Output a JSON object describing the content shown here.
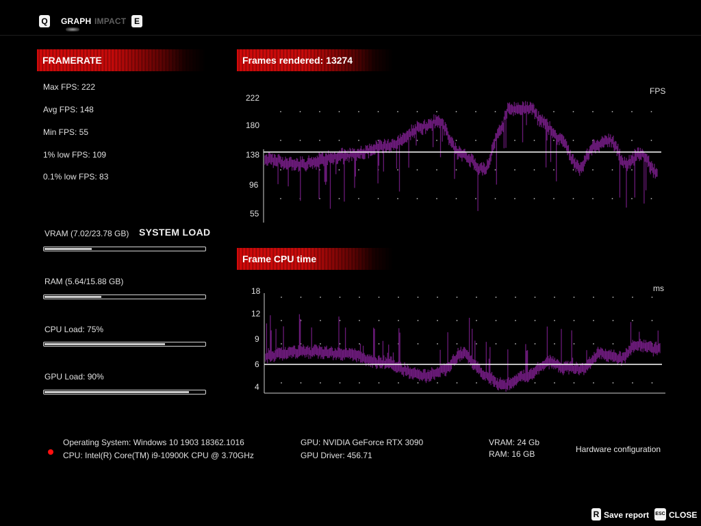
{
  "nav": {
    "key_left": "Q",
    "key_right": "E",
    "tabs": [
      {
        "label": "GRAPH",
        "active": true
      },
      {
        "label": "IMPACT",
        "active": false
      }
    ]
  },
  "framerate": {
    "header": "FRAMERATE",
    "stats": [
      "Max FPS: 222",
      "Avg FPS: 148",
      "Min FPS: 55",
      "1% low FPS: 109",
      "0.1% low FPS: 83"
    ]
  },
  "system_load": {
    "title": "SYSTEM LOAD",
    "items": [
      {
        "label": "VRAM (7.02/23.78 GB)",
        "fraction": 0.295
      },
      {
        "label": "RAM (5.64/15.88 GB)",
        "fraction": 0.355
      },
      {
        "label": "CPU Load: 75%",
        "fraction": 0.75
      },
      {
        "label": "GPU Load: 90%",
        "fraction": 0.9
      }
    ]
  },
  "fps_graph": {
    "header": "Frames rendered: 13274",
    "unit": "FPS",
    "yticks": [
      "222",
      "180",
      "138",
      "96",
      "55"
    ],
    "reference_line": 138
  },
  "cpu_graph": {
    "header": "Frame CPU time",
    "unit": "ms",
    "yticks": [
      "18",
      "12",
      "9",
      "6",
      "4"
    ],
    "reference_line": 6
  },
  "hardware": {
    "os": "Operating System: Windows 10 1903 18362.1016",
    "cpu": "CPU: Intel(R) Core(TM) i9-10900K CPU @ 3.70GHz",
    "gpu": "GPU: NVIDIA GeForce RTX 3090",
    "gpu_driver": "GPU Driver: 456.71",
    "vram": "VRAM: 24 Gb",
    "ram": "RAM: 16 GB",
    "config_label": "Hardware configuration"
  },
  "footer": {
    "save_key": "R",
    "save_label": "Save report",
    "close_key": "ESC",
    "close_label": "CLOSE"
  },
  "colors": {
    "accent_red": "#d40a0a",
    "graph_purple": "#6a1a78",
    "status_dot": "#ff1010"
  }
}
